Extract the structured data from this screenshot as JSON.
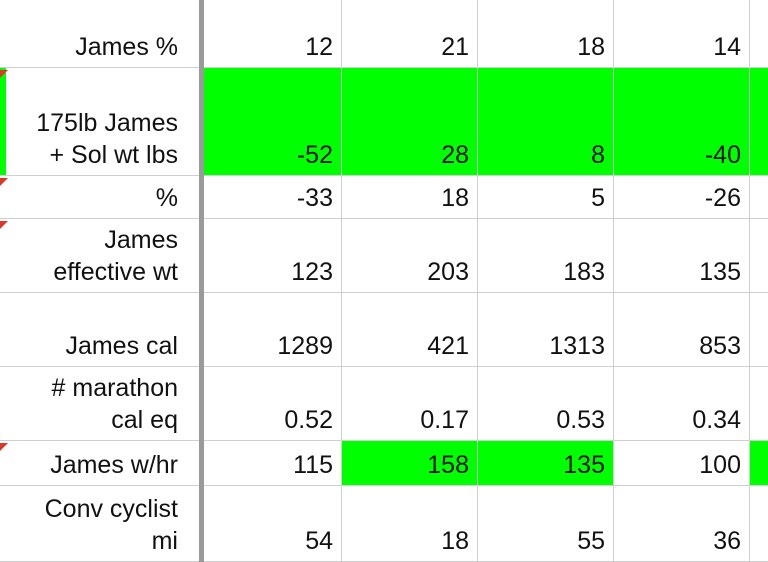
{
  "sheet": {
    "rows": [
      {
        "label": "James %",
        "values": [
          "12",
          "21",
          "18",
          "14"
        ]
      },
      {
        "label": "175lb James\n+ Sol wt  lbs",
        "values": [
          "-52",
          "28",
          "8",
          "-40"
        ]
      },
      {
        "label": "%",
        "values": [
          "-33",
          "18",
          "5",
          "-26"
        ]
      },
      {
        "label": "James\neffective wt",
        "values": [
          "123",
          "203",
          "183",
          "135"
        ]
      },
      {
        "label": "James cal",
        "values": [
          "1289",
          "421",
          "1313",
          "853"
        ]
      },
      {
        "label": "# marathon\ncal eq",
        "values": [
          "0.52",
          "0.17",
          "0.53",
          "0.34"
        ]
      },
      {
        "label": "James w/hr",
        "values": [
          "115",
          "158",
          "135",
          "100"
        ]
      },
      {
        "label": "Conv cyclist\nmi",
        "values": [
          "54",
          "18",
          "55",
          "36"
        ]
      }
    ]
  },
  "colors": {
    "highlight": "#00ff00",
    "gridline": "#cfcfcf",
    "freeze_divider": "#9a9a9a",
    "comment_marker": "#d83a2a"
  }
}
